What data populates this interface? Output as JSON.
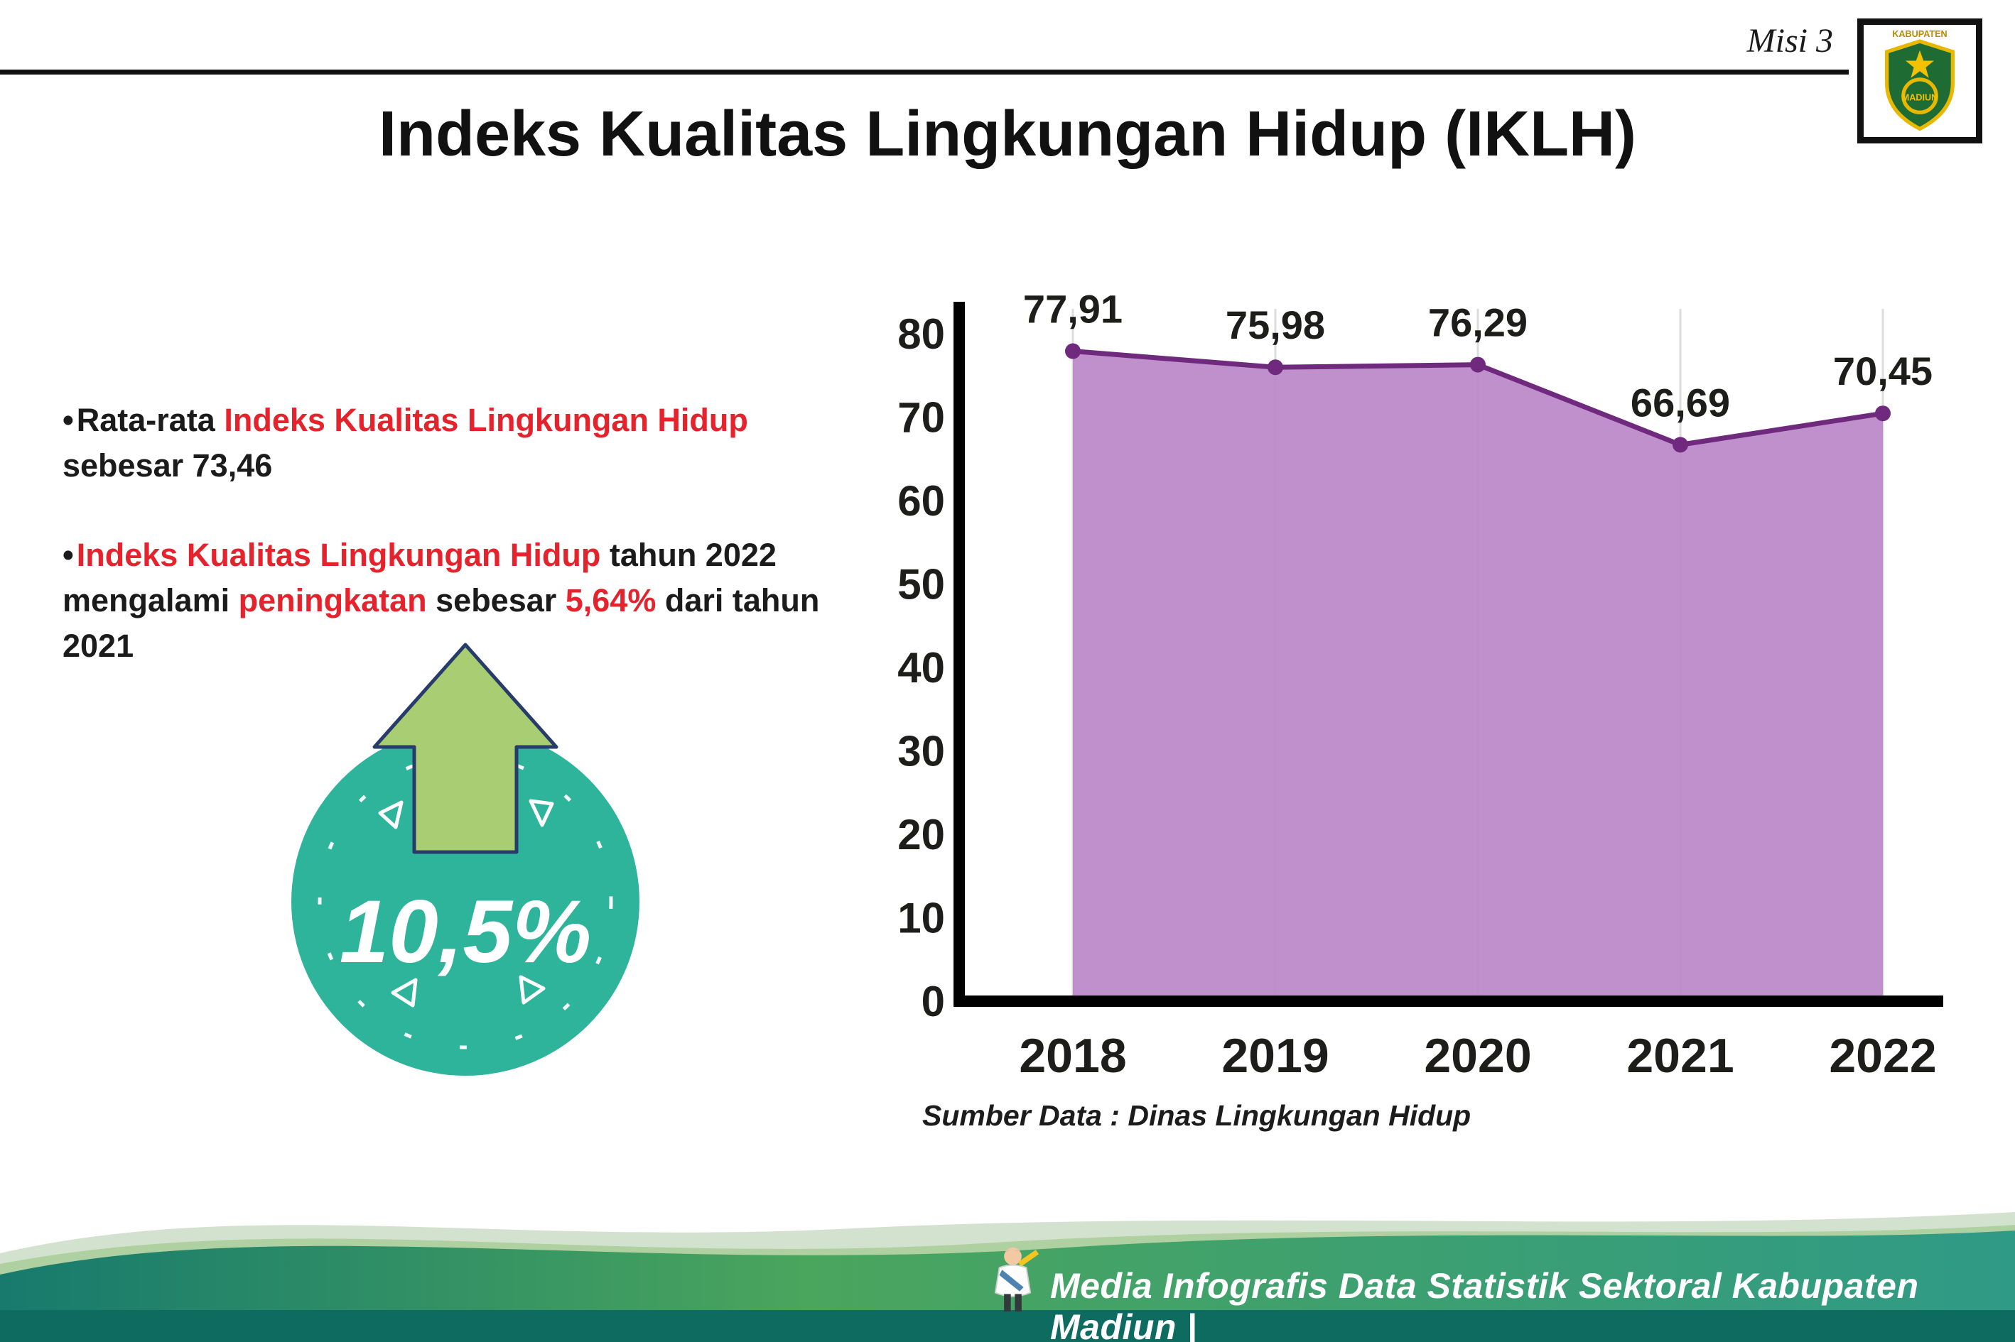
{
  "header": {
    "misi": "Misi 3",
    "title": "Indeks Kualitas Lingkungan Hidup (IKLH)",
    "logo_text_top": "KABUPATEN",
    "logo_text_bottom": "MADIUN"
  },
  "bullets": {
    "dot": "•",
    "b1": {
      "p1": "Rata-rata ",
      "p2": "Indeks Kualitas Lingkungan Hidup",
      "p3": " sebesar 73,46"
    },
    "b2": {
      "p1": "Indeks Kualitas Lingkungan Hidup",
      "p2": " tahun 2022 mengalami ",
      "p3": "peningkatan",
      "p4": " sebesar ",
      "p5": "5,64%",
      "p6": " dari tahun 2021"
    }
  },
  "badge": {
    "value": "10,5%"
  },
  "badge_colors": {
    "circle": "#2eb49b",
    "arrow": "#a8cd72",
    "arrow_outline": "#273c6b",
    "text": "#ffffff"
  },
  "chart_data": {
    "type": "area",
    "title": "",
    "categories": [
      "2018",
      "2019",
      "2020",
      "2021",
      "2022"
    ],
    "values": [
      77.91,
      75.98,
      76.29,
      66.69,
      70.45
    ],
    "value_labels": [
      "77,91",
      "75,98",
      "76,29",
      "66,69",
      "70,45"
    ],
    "xlabel": "",
    "ylabel": "",
    "ylim": [
      0,
      80
    ],
    "ytick_step": 10,
    "grid": "faint-vertical",
    "legend": "none",
    "source": "Sumber Data : Dinas Lingkungan Hidup",
    "colors": {
      "fill": "#bb87c8",
      "line": "#6f2a7e",
      "axis": "#000000",
      "grid": "#dcdcdc",
      "label": "#1d1d1b"
    }
  },
  "footer": {
    "credit": "Media Infografis Data Statistik Sektoral Kabupaten Madiun |",
    "bar_color": "#0e6b60"
  }
}
